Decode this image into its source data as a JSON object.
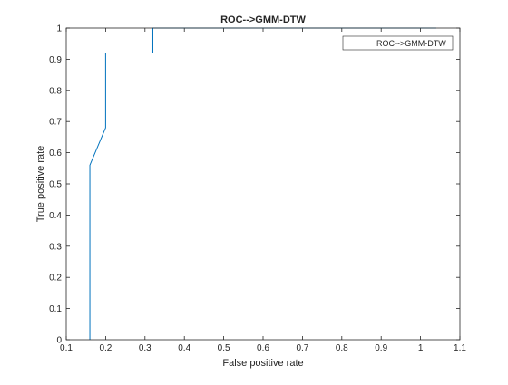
{
  "chart_data": {
    "type": "line",
    "title": "ROC-->GMM-DTW",
    "xlabel": "False positive rate",
    "ylabel": "True positive rate",
    "xlim": [
      0.1,
      1.1
    ],
    "ylim": [
      0,
      1
    ],
    "xticks": [
      "0.1",
      "0.2",
      "0.3",
      "0.4",
      "0.5",
      "0.6",
      "0.7",
      "0.8",
      "0.9",
      "1",
      "1.1"
    ],
    "yticks": [
      "0",
      "0.1",
      "0.2",
      "0.3",
      "0.4",
      "0.5",
      "0.6",
      "0.7",
      "0.8",
      "0.9",
      "1"
    ],
    "grid": false,
    "legend_position": "top-right",
    "series": [
      {
        "name": "ROC-->GMM-DTW",
        "color": "#0072bd",
        "x": [
          0.16,
          0.16,
          0.2,
          0.2,
          0.32,
          0.32,
          1.04
        ],
        "y": [
          0,
          0.56,
          0.68,
          0.92,
          0.92,
          1,
          1
        ]
      }
    ]
  }
}
